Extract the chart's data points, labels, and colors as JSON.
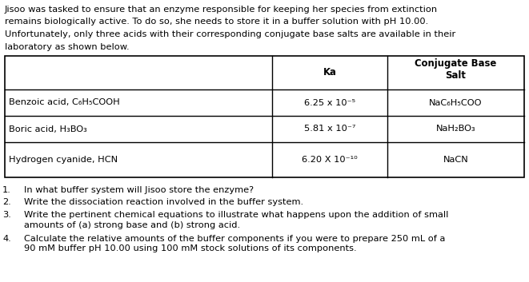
{
  "intro_lines": [
    "Jisoo was tasked to ensure that an enzyme responsible for keeping her species from extinction",
    "remains biologically active. To do so, she needs to store it in a buffer solution with pH 10.00.",
    "Unfortunately, only three acids with their corresponding conjugate base salts are available in their",
    "laboratory as shown below."
  ],
  "table_rows": [
    [
      "Benzoic acid, C₆H₅COOH",
      "6.25 x 10⁻⁵",
      "NaC₆H₅COO"
    ],
    [
      "Boric acid, H₃BO₃",
      "5.81 x 10⁻⁷",
      "NaH₂BO₃"
    ],
    [
      "Hydrogen cyanide, HCN",
      "6.20 X 10⁻¹⁰",
      "NaCN"
    ]
  ],
  "questions": [
    [
      "In what buffer system will Jisoo store the enzyme?"
    ],
    [
      "Write the dissociation reaction involved in the buffer system."
    ],
    [
      "Write the pertinent chemical equations to illustrate what happens upon the addition of small",
      "amounts of (a) strong base and (b) strong acid."
    ],
    [
      "Calculate the relative amounts of the buffer components if you were to prepare 250 mL of a",
      "90 mM buffer pH 10.00 using 100 mM stock solutions of its components."
    ]
  ],
  "bg_color": "#ffffff",
  "text_color": "#000000",
  "font_size": 8.2,
  "header_font_size": 8.4
}
